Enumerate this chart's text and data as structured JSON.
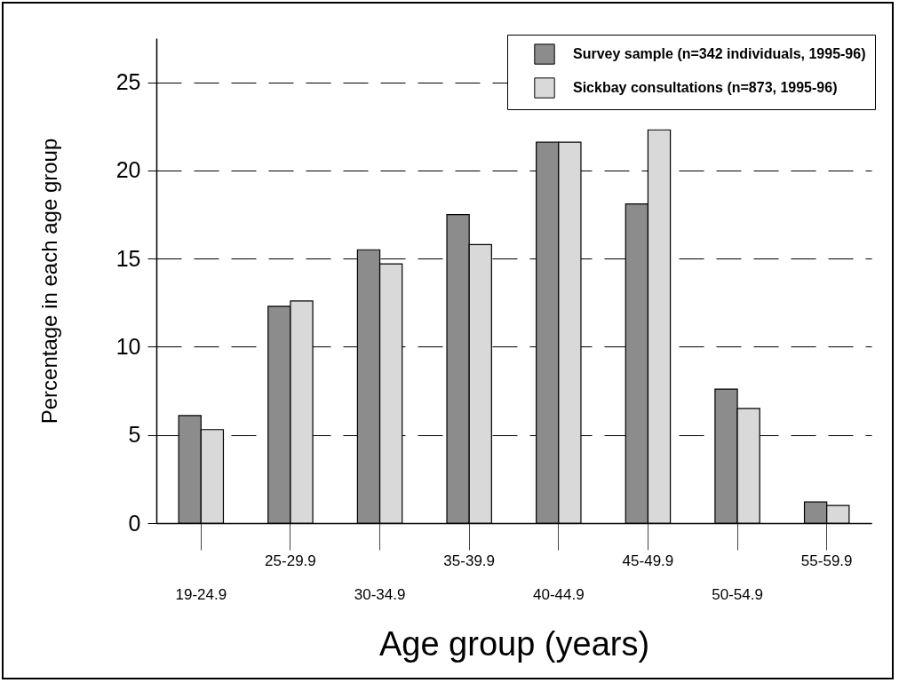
{
  "chart_data": {
    "type": "bar",
    "xlabel": "Age group (years)",
    "ylabel": "Percentage in each age group",
    "categories": [
      "19-24.9",
      "25-29.9",
      "30-34.9",
      "35-39.9",
      "40-44.9",
      "45-49.9",
      "50-54.9",
      "55-59.9"
    ],
    "series": [
      {
        "name": "Survey sample (n=342 individuals, 1995-96)",
        "color": "#8c8c8c",
        "values": [
          6.1,
          12.3,
          15.5,
          17.5,
          21.6,
          18.1,
          7.6,
          1.2
        ]
      },
      {
        "name": "Sickbay consultations (n=873, 1995-96)",
        "color": "#d9d9d9",
        "values": [
          5.3,
          12.6,
          14.7,
          15.8,
          21.6,
          22.3,
          6.5,
          1.0
        ]
      }
    ],
    "ylim": [
      0,
      27.5
    ],
    "yticks": [
      0,
      5,
      10,
      15,
      20,
      25
    ],
    "grid": "y",
    "legend": "top right"
  }
}
